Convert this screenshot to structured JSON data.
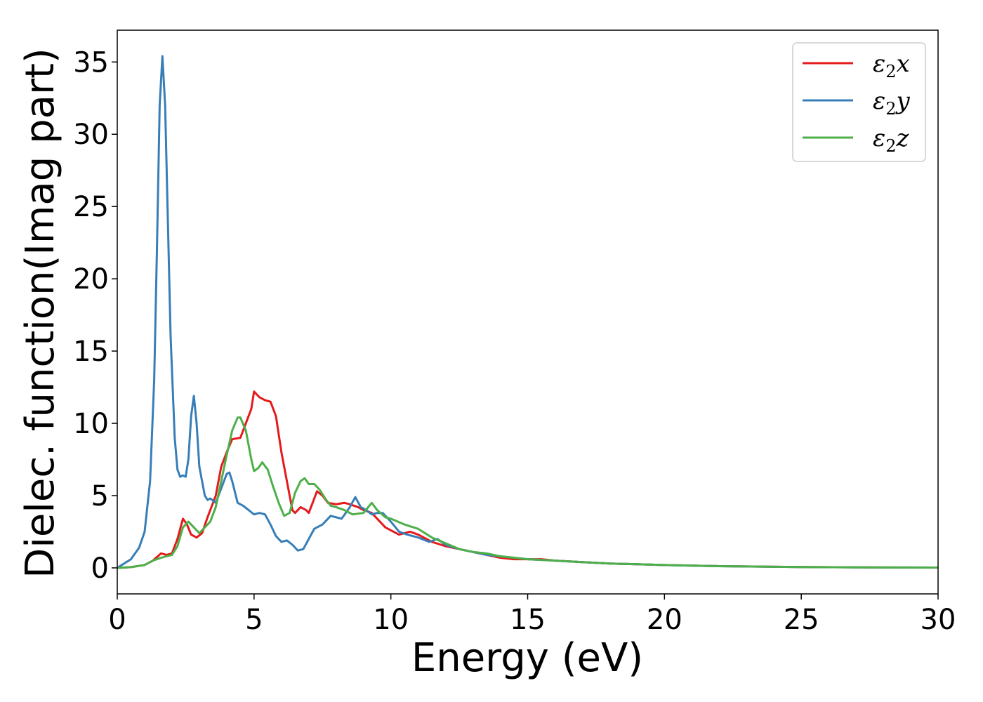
{
  "chart_data": {
    "type": "line",
    "title": "",
    "xlabel": "Energy (eV)",
    "ylabel": "Dielec. function(Imag part)",
    "xlim": [
      0,
      30
    ],
    "ylim": [
      -1.8,
      37.2
    ],
    "xticks": [
      0,
      5,
      10,
      15,
      20,
      25,
      30
    ],
    "yticks": [
      0,
      5,
      10,
      15,
      20,
      25,
      30,
      35
    ],
    "grid": false,
    "legend_position": "top-right",
    "series": [
      {
        "name": "x",
        "legend_symbol": "ε",
        "legend_sub": "2",
        "legend_var": "x",
        "color": "#e41a1c",
        "points": [
          [
            0,
            0
          ],
          [
            0.5,
            0.05
          ],
          [
            1.0,
            0.2
          ],
          [
            1.3,
            0.5
          ],
          [
            1.6,
            1.0
          ],
          [
            1.8,
            0.9
          ],
          [
            2.0,
            1.0
          ],
          [
            2.2,
            2.0
          ],
          [
            2.4,
            3.4
          ],
          [
            2.55,
            3.0
          ],
          [
            2.7,
            2.3
          ],
          [
            2.9,
            2.1
          ],
          [
            3.1,
            2.4
          ],
          [
            3.3,
            3.5
          ],
          [
            3.6,
            5.0
          ],
          [
            3.8,
            7.0
          ],
          [
            4.0,
            8.0
          ],
          [
            4.2,
            8.9
          ],
          [
            4.5,
            9.0
          ],
          [
            4.7,
            10.0
          ],
          [
            4.9,
            11.0
          ],
          [
            5.0,
            12.2
          ],
          [
            5.2,
            11.8
          ],
          [
            5.4,
            11.6
          ],
          [
            5.6,
            11.5
          ],
          [
            5.8,
            10.5
          ],
          [
            6.0,
            8.0
          ],
          [
            6.2,
            6.0
          ],
          [
            6.4,
            4.0
          ],
          [
            6.5,
            3.8
          ],
          [
            6.7,
            4.2
          ],
          [
            6.9,
            4.0
          ],
          [
            7.0,
            3.8
          ],
          [
            7.2,
            4.8
          ],
          [
            7.3,
            5.3
          ],
          [
            7.5,
            5.0
          ],
          [
            7.7,
            4.5
          ],
          [
            8.0,
            4.4
          ],
          [
            8.3,
            4.5
          ],
          [
            8.5,
            4.4
          ],
          [
            8.8,
            4.2
          ],
          [
            9.0,
            4.0
          ],
          [
            9.3,
            3.8
          ],
          [
            9.6,
            3.2
          ],
          [
            9.8,
            2.8
          ],
          [
            10.0,
            2.6
          ],
          [
            10.3,
            2.3
          ],
          [
            10.7,
            2.5
          ],
          [
            11.0,
            2.3
          ],
          [
            11.5,
            1.8
          ],
          [
            12.0,
            1.5
          ],
          [
            12.5,
            1.3
          ],
          [
            13.0,
            1.1
          ],
          [
            13.5,
            0.9
          ],
          [
            14.0,
            0.7
          ],
          [
            14.5,
            0.6
          ],
          [
            15.0,
            0.6
          ],
          [
            15.5,
            0.6
          ],
          [
            16.0,
            0.5
          ],
          [
            17.0,
            0.4
          ],
          [
            18.0,
            0.3
          ],
          [
            20.0,
            0.2
          ],
          [
            22.0,
            0.12
          ],
          [
            25.0,
            0.06
          ],
          [
            28.0,
            0.03
          ],
          [
            30.0,
            0.02
          ]
        ]
      },
      {
        "name": "y",
        "legend_symbol": "ε",
        "legend_sub": "2",
        "legend_var": "y",
        "color": "#377eb8",
        "points": [
          [
            0,
            0
          ],
          [
            0.5,
            0.6
          ],
          [
            0.8,
            1.4
          ],
          [
            1.0,
            2.5
          ],
          [
            1.2,
            6.0
          ],
          [
            1.35,
            13.0
          ],
          [
            1.45,
            22.0
          ],
          [
            1.55,
            32.0
          ],
          [
            1.65,
            35.4
          ],
          [
            1.75,
            32.0
          ],
          [
            1.85,
            24.0
          ],
          [
            1.95,
            16.0
          ],
          [
            2.1,
            9.0
          ],
          [
            2.2,
            6.8
          ],
          [
            2.3,
            6.3
          ],
          [
            2.4,
            6.4
          ],
          [
            2.5,
            6.3
          ],
          [
            2.6,
            7.5
          ],
          [
            2.7,
            10.5
          ],
          [
            2.8,
            11.9
          ],
          [
            2.9,
            10.0
          ],
          [
            3.0,
            7.0
          ],
          [
            3.2,
            5.0
          ],
          [
            3.3,
            4.7
          ],
          [
            3.4,
            4.8
          ],
          [
            3.6,
            4.5
          ],
          [
            3.8,
            5.5
          ],
          [
            4.0,
            6.5
          ],
          [
            4.1,
            6.6
          ],
          [
            4.2,
            6.0
          ],
          [
            4.4,
            4.5
          ],
          [
            4.6,
            4.3
          ],
          [
            4.8,
            4.0
          ],
          [
            5.0,
            3.7
          ],
          [
            5.2,
            3.8
          ],
          [
            5.4,
            3.7
          ],
          [
            5.6,
            3.0
          ],
          [
            5.8,
            2.2
          ],
          [
            6.0,
            1.8
          ],
          [
            6.2,
            1.9
          ],
          [
            6.4,
            1.6
          ],
          [
            6.6,
            1.2
          ],
          [
            6.8,
            1.3
          ],
          [
            7.0,
            2.0
          ],
          [
            7.2,
            2.7
          ],
          [
            7.5,
            3.0
          ],
          [
            7.8,
            3.6
          ],
          [
            8.0,
            3.5
          ],
          [
            8.2,
            3.4
          ],
          [
            8.5,
            4.2
          ],
          [
            8.7,
            4.9
          ],
          [
            8.9,
            4.2
          ],
          [
            9.1,
            4.0
          ],
          [
            9.3,
            3.7
          ],
          [
            9.5,
            3.8
          ],
          [
            9.7,
            3.8
          ],
          [
            10.0,
            3.2
          ],
          [
            10.3,
            2.5
          ],
          [
            10.6,
            2.3
          ],
          [
            11.0,
            2.1
          ],
          [
            11.4,
            1.8
          ],
          [
            11.7,
            2.0
          ],
          [
            12.0,
            1.6
          ],
          [
            12.5,
            1.3
          ],
          [
            13.0,
            1.1
          ],
          [
            13.5,
            0.9
          ],
          [
            14.0,
            0.8
          ],
          [
            14.5,
            0.7
          ],
          [
            15.0,
            0.6
          ],
          [
            16.0,
            0.5
          ],
          [
            17.0,
            0.4
          ],
          [
            18.0,
            0.3
          ],
          [
            20.0,
            0.2
          ],
          [
            22.0,
            0.12
          ],
          [
            25.0,
            0.06
          ],
          [
            28.0,
            0.03
          ],
          [
            30.0,
            0.02
          ]
        ]
      },
      {
        "name": "z",
        "legend_symbol": "ε",
        "legend_sub": "2",
        "legend_var": "z",
        "color": "#4daf4a",
        "points": [
          [
            0,
            0
          ],
          [
            0.5,
            0.05
          ],
          [
            1.0,
            0.2
          ],
          [
            1.3,
            0.5
          ],
          [
            1.6,
            0.7
          ],
          [
            1.8,
            0.8
          ],
          [
            2.0,
            0.9
          ],
          [
            2.2,
            1.5
          ],
          [
            2.4,
            2.8
          ],
          [
            2.6,
            3.2
          ],
          [
            2.8,
            2.8
          ],
          [
            3.0,
            2.4
          ],
          [
            3.2,
            2.8
          ],
          [
            3.4,
            3.2
          ],
          [
            3.6,
            4.2
          ],
          [
            3.8,
            6.0
          ],
          [
            4.0,
            7.8
          ],
          [
            4.2,
            9.5
          ],
          [
            4.4,
            10.4
          ],
          [
            4.5,
            10.4
          ],
          [
            4.7,
            9.5
          ],
          [
            4.9,
            7.5
          ],
          [
            5.0,
            6.7
          ],
          [
            5.15,
            6.9
          ],
          [
            5.3,
            7.3
          ],
          [
            5.5,
            6.8
          ],
          [
            5.7,
            5.6
          ],
          [
            5.9,
            4.5
          ],
          [
            6.1,
            3.6
          ],
          [
            6.3,
            3.8
          ],
          [
            6.5,
            5.2
          ],
          [
            6.7,
            6.0
          ],
          [
            6.85,
            6.2
          ],
          [
            7.0,
            5.8
          ],
          [
            7.2,
            5.8
          ],
          [
            7.4,
            5.4
          ],
          [
            7.6,
            4.8
          ],
          [
            7.8,
            4.3
          ],
          [
            8.0,
            4.2
          ],
          [
            8.3,
            4.0
          ],
          [
            8.6,
            3.7
          ],
          [
            9.0,
            3.8
          ],
          [
            9.3,
            4.5
          ],
          [
            9.5,
            4.0
          ],
          [
            9.8,
            3.5
          ],
          [
            10.0,
            3.4
          ],
          [
            10.5,
            3.0
          ],
          [
            11.0,
            2.7
          ],
          [
            11.5,
            2.1
          ],
          [
            12.0,
            1.7
          ],
          [
            12.5,
            1.3
          ],
          [
            13.0,
            1.1
          ],
          [
            13.5,
            1.0
          ],
          [
            14.0,
            0.8
          ],
          [
            14.5,
            0.7
          ],
          [
            15.0,
            0.6
          ],
          [
            16.0,
            0.5
          ],
          [
            17.0,
            0.4
          ],
          [
            18.0,
            0.3
          ],
          [
            20.0,
            0.2
          ],
          [
            22.0,
            0.12
          ],
          [
            25.0,
            0.06
          ],
          [
            28.0,
            0.03
          ],
          [
            30.0,
            0.02
          ]
        ]
      }
    ]
  }
}
